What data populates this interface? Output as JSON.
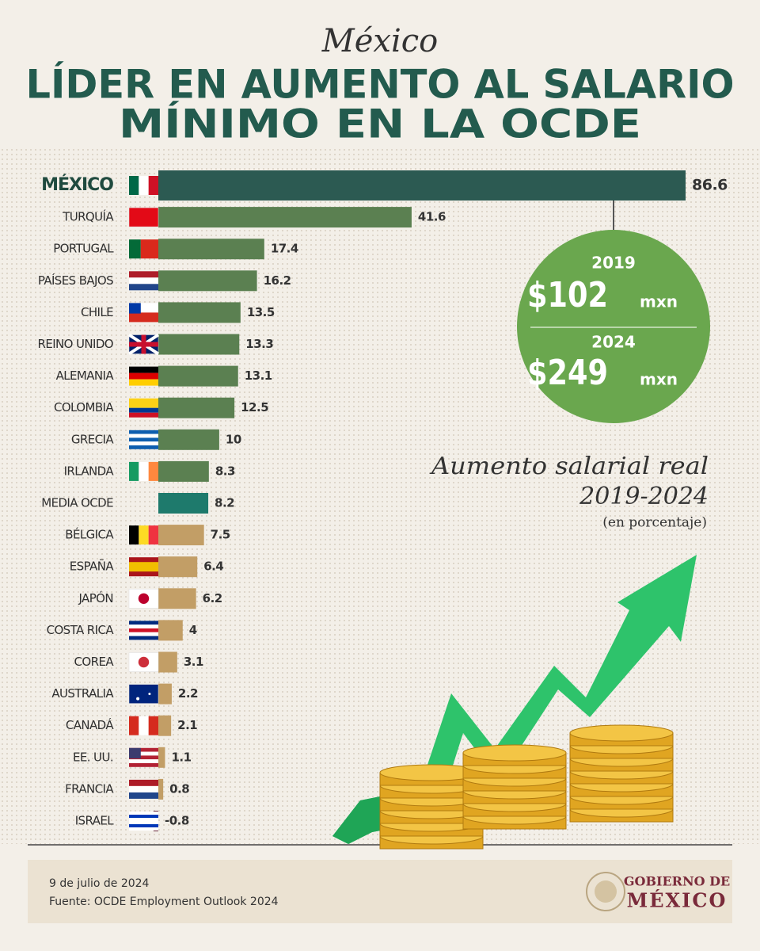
{
  "header": {
    "kicker": "México",
    "title_lines": [
      "LÍDER EN AUMENTO AL SALARIO",
      "MÍNIMO EN LA OCDE"
    ]
  },
  "chart_data": {
    "type": "bar",
    "categories": [
      "MÉXICO",
      "TURQUÍA",
      "PORTUGAL",
      "PAÍSES BAJOS",
      "CHILE",
      "REINO UNIDO",
      "ALEMANIA",
      "COLOMBIA",
      "GRECIA",
      "IRLANDA",
      "MEDIA OCDE",
      "BÉLGICA",
      "ESPAÑA",
      "JAPÓN",
      "COSTA RICA",
      "COREA",
      "AUSTRALIA",
      "CANADÁ",
      "EE. UU.",
      "FRANCIA",
      "ISRAEL"
    ],
    "values": [
      86.6,
      41.6,
      17.4,
      16.2,
      13.5,
      13.3,
      13.1,
      12.5,
      10,
      8.3,
      8.2,
      7.5,
      6.4,
      6.2,
      4,
      3.1,
      2.2,
      2.1,
      1.1,
      0.8,
      -0.8
    ],
    "colors": [
      "#2c5a52",
      "#5b8051",
      "#5b8051",
      "#5b8051",
      "#5b8051",
      "#5b8051",
      "#5b8051",
      "#5b8051",
      "#5b8051",
      "#5b8051",
      "#1e7a6c",
      "#c29e66",
      "#c29e66",
      "#c29e66",
      "#c29e66",
      "#c29e66",
      "#c29e66",
      "#c29e66",
      "#c29e66",
      "#c29e66",
      "#6b2b3c"
    ],
    "subtitle_lines": [
      "Aumento salarial real",
      "2019-2024"
    ],
    "unit_note": "(en porcentaje)"
  },
  "callout": {
    "year1": "2019",
    "amount1": "$102",
    "unit1": "mxn",
    "year2": "2024",
    "amount2": "$249",
    "unit2": "mxn"
  },
  "footer": {
    "date": "9 de julio de 2024",
    "source": "Fuente: OCDE Employment Outlook 2024",
    "brand_top": "GOBIERNO DE",
    "brand_bottom": "MÉXICO"
  }
}
